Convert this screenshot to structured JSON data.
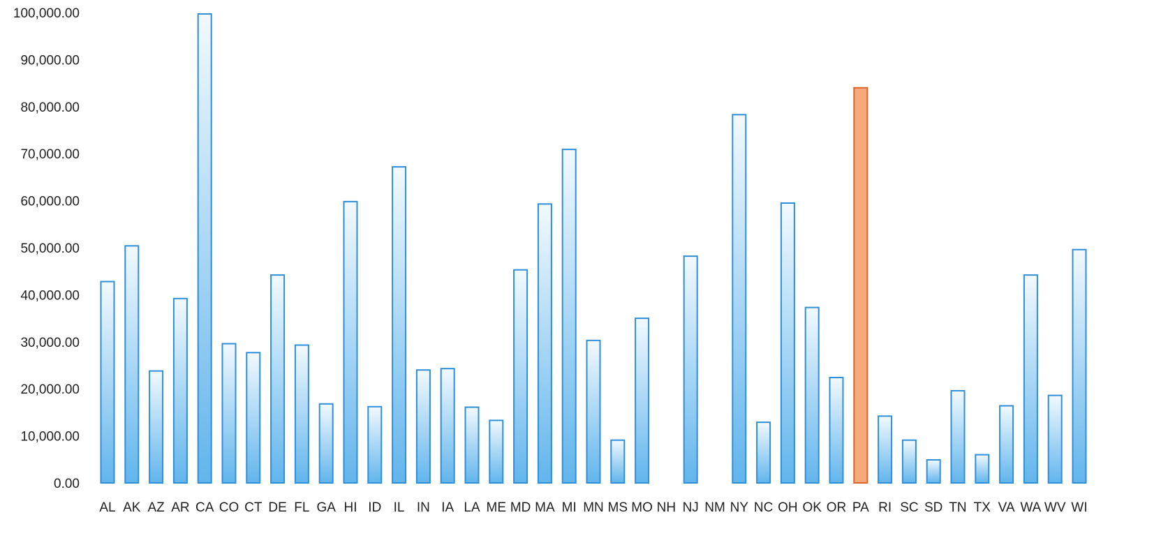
{
  "chart_data": {
    "type": "bar",
    "title": "",
    "xlabel": "",
    "ylabel": "",
    "ylim": [
      0,
      100000
    ],
    "yticks": [
      "0.00",
      "10,000.00",
      "20,000.00",
      "30,000.00",
      "40,000.00",
      "50,000.00",
      "60,000.00",
      "70,000.00",
      "80,000.00",
      "90,000.00",
      "100,000.00"
    ],
    "grid": false,
    "legend": "none",
    "categories": [
      "AL",
      "AK",
      "AZ",
      "AR",
      "CA",
      "CO",
      "CT",
      "DE",
      "FL",
      "GA",
      "HI",
      "ID",
      "IL",
      "IN",
      "IA",
      "LA",
      "ME",
      "MD",
      "MA",
      "MI",
      "MN",
      "MS",
      "MO",
      "NH",
      "NJ",
      "NM",
      "NY",
      "NC",
      "OH",
      "OK",
      "OR",
      "PA",
      "RI",
      "SC",
      "SD",
      "TN",
      "TX",
      "VA",
      "WA",
      "WV",
      "WI"
    ],
    "values": [
      42800,
      50400,
      23800,
      39200,
      99700,
      29600,
      27700,
      44200,
      29300,
      16800,
      59800,
      16200,
      67200,
      24000,
      24300,
      16100,
      13300,
      45300,
      59300,
      70900,
      30300,
      9100,
      35000,
      0,
      48200,
      0,
      78300,
      12900,
      59500,
      37300,
      22400,
      84000,
      14200,
      9100,
      4900,
      19600,
      6000,
      16400,
      44200,
      18600,
      49600
    ],
    "highlight_category": "PA",
    "colors": {
      "bar_fill_top": "#f2f9fe",
      "bar_fill_bottom": "#62b5ec",
      "bar_stroke": "#2f8ed8",
      "highlight_fill": "#f6a97a",
      "highlight_stroke": "#d9652c"
    }
  }
}
